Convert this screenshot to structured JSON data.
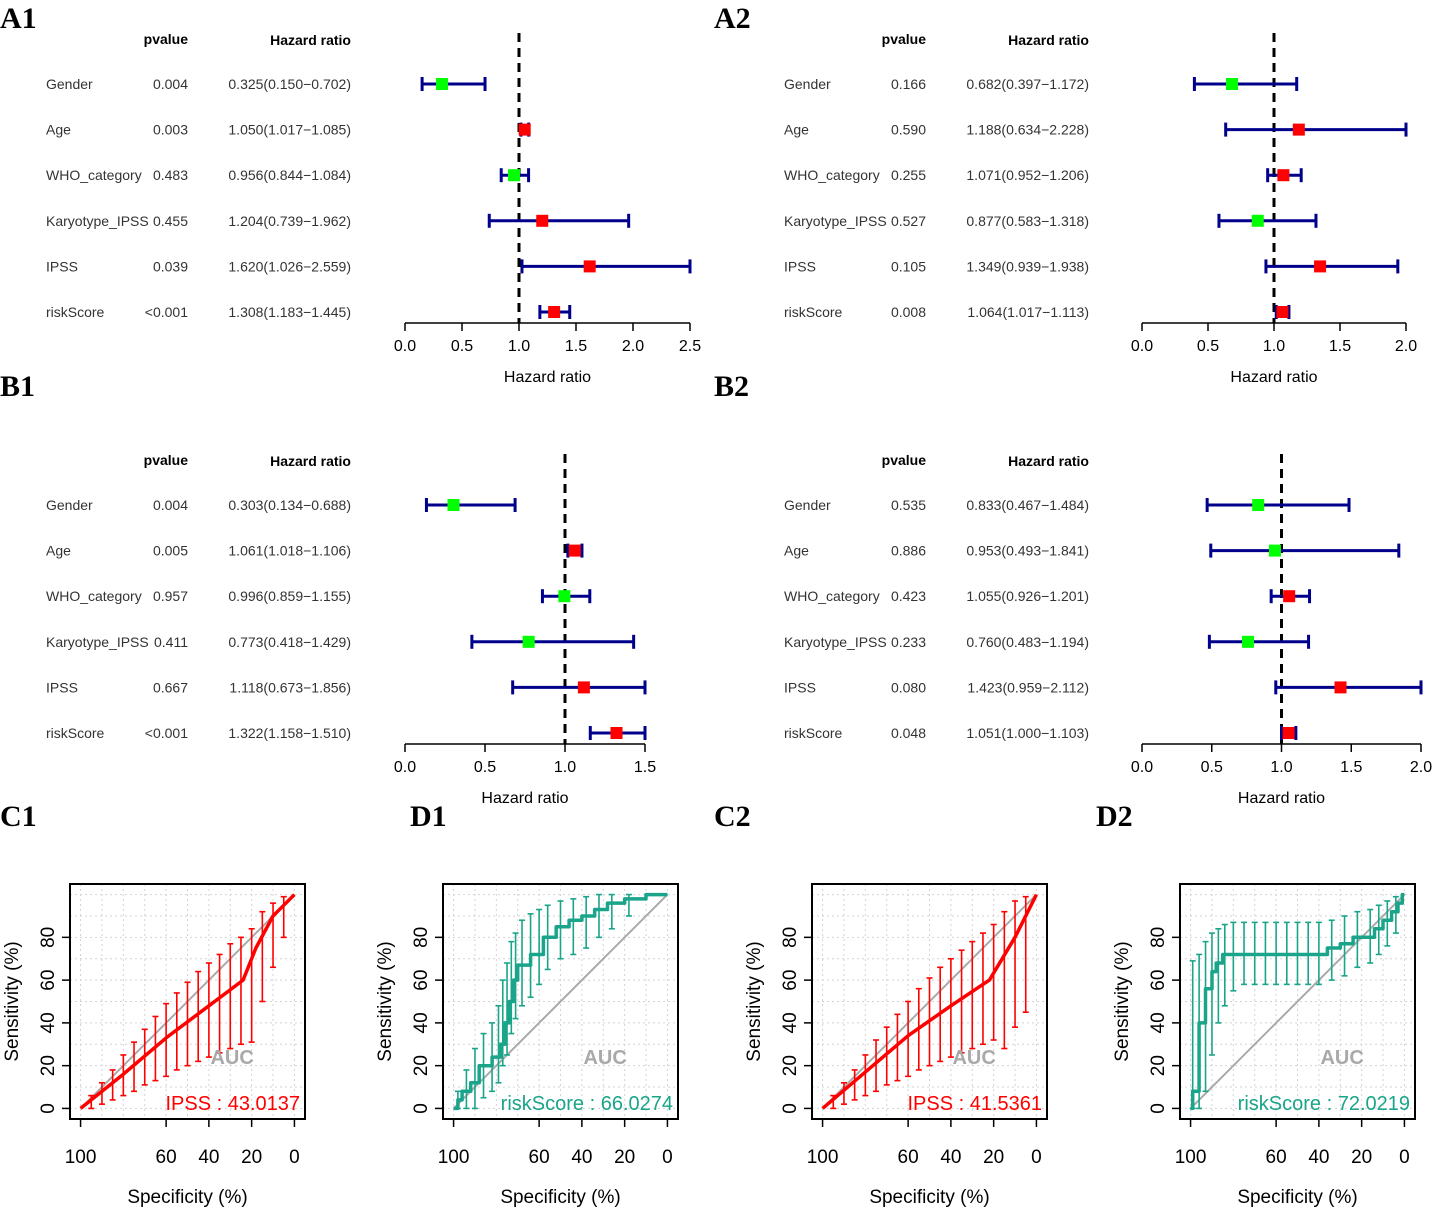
{
  "colors": {
    "ci_line": "#00008b",
    "protective": "#00ff00",
    "risk": "#ff0000",
    "ipss_roc": "#ff0000",
    "riskscore_roc": "#1aa58a",
    "diagonal": "#a9a9a9",
    "auc_title": "#a9a9a9"
  },
  "labels": {
    "pvalue_header": "pvalue",
    "hr_header": "Hazard ratio",
    "forest_xlabel": "Hazard ratio",
    "roc_xlabel": "Specificity (%)",
    "roc_ylabel": "Sensitivity (%)",
    "auc_title": "AUC"
  },
  "chart_data": [
    {
      "id": "A1",
      "panel_label": "A1",
      "type": "forest",
      "xlim": [
        0,
        2.5
      ],
      "xticks": [
        "0.0",
        "0.5",
        "1.0",
        "1.5",
        "2.0",
        "2.5"
      ],
      "ref": 1,
      "rows": [
        {
          "name": "Gender",
          "pvalue": "0.004",
          "hr_text": "0.325(0.150−0.702)",
          "hr": 0.325,
          "lo": 0.15,
          "hi": 0.702
        },
        {
          "name": "Age",
          "pvalue": "0.003",
          "hr_text": "1.050(1.017−1.085)",
          "hr": 1.05,
          "lo": 1.017,
          "hi": 1.085
        },
        {
          "name": "WHO_category",
          "pvalue": "0.483",
          "hr_text": "0.956(0.844−1.084)",
          "hr": 0.956,
          "lo": 0.844,
          "hi": 1.084
        },
        {
          "name": "Karyotype_IPSS",
          "pvalue": "0.455",
          "hr_text": "1.204(0.739−1.962)",
          "hr": 1.204,
          "lo": 0.739,
          "hi": 1.962
        },
        {
          "name": "IPSS",
          "pvalue": "0.039",
          "hr_text": "1.620(1.026−2.559)",
          "hr": 1.62,
          "lo": 1.026,
          "hi": 2.559
        },
        {
          "name": "riskScore",
          "pvalue": "<0.001",
          "hr_text": "1.308(1.183−1.445)",
          "hr": 1.308,
          "lo": 1.183,
          "hi": 1.445
        }
      ]
    },
    {
      "id": "A2",
      "panel_label": "A2",
      "type": "forest",
      "xlim": [
        0,
        2.0
      ],
      "xticks": [
        "0.0",
        "0.5",
        "1.0",
        "1.5",
        "2.0"
      ],
      "ref": 1,
      "rows": [
        {
          "name": "Gender",
          "pvalue": "0.166",
          "hr_text": "0.682(0.397−1.172)",
          "hr": 0.682,
          "lo": 0.397,
          "hi": 1.172
        },
        {
          "name": "Age",
          "pvalue": "0.590",
          "hr_text": "1.188(0.634−2.228)",
          "hr": 1.188,
          "lo": 0.634,
          "hi": 2.228
        },
        {
          "name": "WHO_category",
          "pvalue": "0.255",
          "hr_text": "1.071(0.952−1.206)",
          "hr": 1.071,
          "lo": 0.952,
          "hi": 1.206
        },
        {
          "name": "Karyotype_IPSS",
          "pvalue": "0.527",
          "hr_text": "0.877(0.583−1.318)",
          "hr": 0.877,
          "lo": 0.583,
          "hi": 1.318
        },
        {
          "name": "IPSS",
          "pvalue": "0.105",
          "hr_text": "1.349(0.939−1.938)",
          "hr": 1.349,
          "lo": 0.939,
          "hi": 1.938
        },
        {
          "name": "riskScore",
          "pvalue": "0.008",
          "hr_text": "1.064(1.017−1.113)",
          "hr": 1.064,
          "lo": 1.017,
          "hi": 1.113
        }
      ]
    },
    {
      "id": "B1",
      "panel_label": "B1",
      "type": "forest",
      "xlim": [
        0,
        1.5
      ],
      "xticks": [
        "0.0",
        "0.5",
        "1.0",
        "1.5"
      ],
      "ref": 1,
      "rows": [
        {
          "name": "Gender",
          "pvalue": "0.004",
          "hr_text": "0.303(0.134−0.688)",
          "hr": 0.303,
          "lo": 0.134,
          "hi": 0.688
        },
        {
          "name": "Age",
          "pvalue": "0.005",
          "hr_text": "1.061(1.018−1.106)",
          "hr": 1.061,
          "lo": 1.018,
          "hi": 1.106
        },
        {
          "name": "WHO_category",
          "pvalue": "0.957",
          "hr_text": "0.996(0.859−1.155)",
          "hr": 0.996,
          "lo": 0.859,
          "hi": 1.155
        },
        {
          "name": "Karyotype_IPSS",
          "pvalue": "0.411",
          "hr_text": "0.773(0.418−1.429)",
          "hr": 0.773,
          "lo": 0.418,
          "hi": 1.429
        },
        {
          "name": "IPSS",
          "pvalue": "0.667",
          "hr_text": "1.118(0.673−1.856)",
          "hr": 1.118,
          "lo": 0.673,
          "hi": 1.856
        },
        {
          "name": "riskScore",
          "pvalue": "<0.001",
          "hr_text": "1.322(1.158−1.510)",
          "hr": 1.322,
          "lo": 1.158,
          "hi": 1.51
        }
      ]
    },
    {
      "id": "B2",
      "panel_label": "B2",
      "type": "forest",
      "xlim": [
        0,
        2.0
      ],
      "xticks": [
        "0.0",
        "0.5",
        "1.0",
        "1.5",
        "2.0"
      ],
      "ref": 1,
      "rows": [
        {
          "name": "Gender",
          "pvalue": "0.535",
          "hr_text": "0.833(0.467−1.484)",
          "hr": 0.833,
          "lo": 0.467,
          "hi": 1.484
        },
        {
          "name": "Age",
          "pvalue": "0.886",
          "hr_text": "0.953(0.493−1.841)",
          "hr": 0.953,
          "lo": 0.493,
          "hi": 1.841
        },
        {
          "name": "WHO_category",
          "pvalue": "0.423",
          "hr_text": "1.055(0.926−1.201)",
          "hr": 1.055,
          "lo": 0.926,
          "hi": 1.201
        },
        {
          "name": "Karyotype_IPSS",
          "pvalue": "0.233",
          "hr_text": "0.760(0.483−1.194)",
          "hr": 0.76,
          "lo": 0.483,
          "hi": 1.194
        },
        {
          "name": "IPSS",
          "pvalue": "0.080",
          "hr_text": "1.423(0.959−2.112)",
          "hr": 1.423,
          "lo": 0.959,
          "hi": 2.112
        },
        {
          "name": "riskScore",
          "pvalue": "0.048",
          "hr_text": "1.051(1.000−1.103)",
          "hr": 1.051,
          "lo": 1.0,
          "hi": 1.103
        }
      ]
    },
    {
      "id": "C1",
      "panel_label": "C1",
      "type": "line",
      "subtype": "roc",
      "series_name": "IPSS",
      "auc_text": "IPSS : 43.0137",
      "auc": 43.0137,
      "color": "#ff0000",
      "step": false,
      "xlabel": "Specificity (%)",
      "ylabel": "Sensitivity (%)",
      "xticks": [
        100,
        60,
        40,
        20,
        0
      ],
      "yticks": [
        0,
        20,
        40,
        60,
        80
      ],
      "curve": [
        [
          100,
          0
        ],
        [
          80,
          16
        ],
        [
          60,
          33
        ],
        [
          40,
          48
        ],
        [
          24,
          60
        ],
        [
          18,
          75
        ],
        [
          10,
          90
        ],
        [
          5,
          95
        ],
        [
          0,
          100
        ]
      ],
      "ci": [
        {
          "spec": 95,
          "lo": 0,
          "hi": 6
        },
        {
          "spec": 90,
          "lo": 2,
          "hi": 12
        },
        {
          "spec": 85,
          "lo": 4,
          "hi": 18
        },
        {
          "spec": 80,
          "lo": 6,
          "hi": 25
        },
        {
          "spec": 75,
          "lo": 8,
          "hi": 31
        },
        {
          "spec": 70,
          "lo": 11,
          "hi": 37
        },
        {
          "spec": 65,
          "lo": 13,
          "hi": 43
        },
        {
          "spec": 60,
          "lo": 15,
          "hi": 49
        },
        {
          "spec": 55,
          "lo": 18,
          "hi": 54
        },
        {
          "spec": 50,
          "lo": 20,
          "hi": 59
        },
        {
          "spec": 45,
          "lo": 22,
          "hi": 64
        },
        {
          "spec": 40,
          "lo": 24,
          "hi": 68
        },
        {
          "spec": 35,
          "lo": 26,
          "hi": 72
        },
        {
          "spec": 30,
          "lo": 28,
          "hi": 77
        },
        {
          "spec": 25,
          "lo": 30,
          "hi": 80
        },
        {
          "spec": 20,
          "lo": 31,
          "hi": 84
        },
        {
          "spec": 15,
          "lo": 50,
          "hi": 92
        },
        {
          "spec": 10,
          "lo": 66,
          "hi": 96
        },
        {
          "spec": 5,
          "lo": 80,
          "hi": 99
        }
      ]
    },
    {
      "id": "D1",
      "panel_label": "D1",
      "type": "line",
      "subtype": "roc",
      "series_name": "riskScore",
      "auc_text": "riskScore : 66.0274",
      "auc": 66.0274,
      "color": "#1aa58a",
      "step": true,
      "xlabel": "Specificity (%)",
      "ylabel": "Sensitivity (%)",
      "xticks": [
        100,
        60,
        40,
        20,
        0
      ],
      "yticks": [
        0,
        20,
        40,
        60,
        80
      ],
      "curve": [
        [
          100,
          0
        ],
        [
          98,
          0
        ],
        [
          98,
          4
        ],
        [
          96,
          4
        ],
        [
          96,
          8
        ],
        [
          92,
          8
        ],
        [
          92,
          12
        ],
        [
          88,
          12
        ],
        [
          88,
          20
        ],
        [
          82,
          20
        ],
        [
          82,
          24
        ],
        [
          78,
          24
        ],
        [
          78,
          30
        ],
        [
          76,
          30
        ],
        [
          76,
          40
        ],
        [
          74,
          40
        ],
        [
          74,
          50
        ],
        [
          72,
          50
        ],
        [
          72,
          60
        ],
        [
          70,
          60
        ],
        [
          70,
          67
        ],
        [
          64,
          67
        ],
        [
          64,
          72
        ],
        [
          58,
          72
        ],
        [
          58,
          80
        ],
        [
          52,
          80
        ],
        [
          52,
          85
        ],
        [
          46,
          85
        ],
        [
          46,
          88
        ],
        [
          40,
          88
        ],
        [
          40,
          90
        ],
        [
          34,
          90
        ],
        [
          34,
          93
        ],
        [
          28,
          93
        ],
        [
          28,
          96
        ],
        [
          20,
          96
        ],
        [
          20,
          98
        ],
        [
          10,
          98
        ],
        [
          10,
          100
        ],
        [
          0,
          100
        ]
      ],
      "ci": [
        {
          "spec": 98,
          "lo": 0,
          "hi": 8
        },
        {
          "spec": 94,
          "lo": 0,
          "hi": 18
        },
        {
          "spec": 90,
          "lo": 0,
          "hi": 28
        },
        {
          "spec": 86,
          "lo": 5,
          "hi": 35
        },
        {
          "spec": 82,
          "lo": 8,
          "hi": 40
        },
        {
          "spec": 79,
          "lo": 12,
          "hi": 48
        },
        {
          "spec": 77,
          "lo": 20,
          "hi": 60
        },
        {
          "spec": 75,
          "lo": 25,
          "hi": 68
        },
        {
          "spec": 73,
          "lo": 35,
          "hi": 78
        },
        {
          "spec": 71,
          "lo": 42,
          "hi": 82
        },
        {
          "spec": 68,
          "lo": 48,
          "hi": 88
        },
        {
          "spec": 64,
          "lo": 52,
          "hi": 91
        },
        {
          "spec": 60,
          "lo": 58,
          "hi": 93
        },
        {
          "spec": 56,
          "lo": 65,
          "hi": 95
        },
        {
          "spec": 50,
          "lo": 70,
          "hi": 97
        },
        {
          "spec": 44,
          "lo": 72,
          "hi": 98
        },
        {
          "spec": 38,
          "lo": 75,
          "hi": 99
        },
        {
          "spec": 32,
          "lo": 80,
          "hi": 100
        },
        {
          "spec": 26,
          "lo": 84,
          "hi": 100
        },
        {
          "spec": 18,
          "lo": 90,
          "hi": 100
        }
      ]
    },
    {
      "id": "C2",
      "panel_label": "C2",
      "type": "line",
      "subtype": "roc",
      "series_name": "IPSS",
      "auc_text": "IPSS : 41.5361",
      "auc": 41.5361,
      "color": "#ff0000",
      "step": false,
      "xlabel": "Specificity (%)",
      "ylabel": "Sensitivity (%)",
      "xticks": [
        100,
        60,
        40,
        20,
        0
      ],
      "yticks": [
        0,
        20,
        40,
        60,
        80
      ],
      "curve": [
        [
          100,
          0
        ],
        [
          80,
          17
        ],
        [
          60,
          34
        ],
        [
          40,
          48
        ],
        [
          22,
          60
        ],
        [
          10,
          80
        ],
        [
          0,
          100
        ]
      ],
      "ci": [
        {
          "spec": 95,
          "lo": 0,
          "hi": 6
        },
        {
          "spec": 90,
          "lo": 2,
          "hi": 12
        },
        {
          "spec": 85,
          "lo": 4,
          "hi": 18
        },
        {
          "spec": 80,
          "lo": 6,
          "hi": 25
        },
        {
          "spec": 75,
          "lo": 8,
          "hi": 32
        },
        {
          "spec": 70,
          "lo": 11,
          "hi": 38
        },
        {
          "spec": 65,
          "lo": 13,
          "hi": 44
        },
        {
          "spec": 60,
          "lo": 15,
          "hi": 50
        },
        {
          "spec": 55,
          "lo": 18,
          "hi": 56
        },
        {
          "spec": 50,
          "lo": 20,
          "hi": 61
        },
        {
          "spec": 45,
          "lo": 22,
          "hi": 66
        },
        {
          "spec": 40,
          "lo": 24,
          "hi": 70
        },
        {
          "spec": 35,
          "lo": 26,
          "hi": 74
        },
        {
          "spec": 30,
          "lo": 28,
          "hi": 78
        },
        {
          "spec": 25,
          "lo": 30,
          "hi": 82
        },
        {
          "spec": 20,
          "lo": 32,
          "hi": 86
        },
        {
          "spec": 15,
          "lo": 28,
          "hi": 92
        },
        {
          "spec": 10,
          "lo": 38,
          "hi": 97
        },
        {
          "spec": 5,
          "lo": 45,
          "hi": 99
        }
      ]
    },
    {
      "id": "D2",
      "panel_label": "D2",
      "type": "line",
      "subtype": "roc",
      "series_name": "riskScore",
      "auc_text": "riskScore : 72.0219",
      "auc": 72.0219,
      "color": "#1aa58a",
      "step": true,
      "xlabel": "Specificity (%)",
      "ylabel": "Sensitivity (%)",
      "xticks": [
        100,
        60,
        40,
        20,
        0
      ],
      "yticks": [
        0,
        20,
        40,
        60,
        80
      ],
      "curve": [
        [
          100,
          0
        ],
        [
          99,
          0
        ],
        [
          99,
          8
        ],
        [
          96,
          8
        ],
        [
          96,
          40
        ],
        [
          93,
          40
        ],
        [
          93,
          56
        ],
        [
          90,
          56
        ],
        [
          90,
          64
        ],
        [
          88,
          64
        ],
        [
          88,
          68
        ],
        [
          85,
          68
        ],
        [
          85,
          72
        ],
        [
          36,
          72
        ],
        [
          36,
          75
        ],
        [
          30,
          75
        ],
        [
          30,
          77
        ],
        [
          24,
          77
        ],
        [
          24,
          80
        ],
        [
          14,
          80
        ],
        [
          14,
          84
        ],
        [
          10,
          84
        ],
        [
          10,
          88
        ],
        [
          6,
          88
        ],
        [
          6,
          92
        ],
        [
          3,
          92
        ],
        [
          3,
          96
        ],
        [
          1,
          96
        ],
        [
          1,
          100
        ],
        [
          0,
          100
        ]
      ],
      "ci": [
        {
          "spec": 99,
          "lo": 0,
          "hi": 69
        },
        {
          "spec": 96,
          "lo": 0,
          "hi": 72
        },
        {
          "spec": 93,
          "lo": 8,
          "hi": 78
        },
        {
          "spec": 90,
          "lo": 25,
          "hi": 82
        },
        {
          "spec": 87,
          "lo": 40,
          "hi": 84
        },
        {
          "spec": 84,
          "lo": 48,
          "hi": 86
        },
        {
          "spec": 80,
          "lo": 55,
          "hi": 87
        },
        {
          "spec": 75,
          "lo": 58,
          "hi": 87
        },
        {
          "spec": 70,
          "lo": 58,
          "hi": 87
        },
        {
          "spec": 65,
          "lo": 58,
          "hi": 87
        },
        {
          "spec": 60,
          "lo": 58,
          "hi": 87
        },
        {
          "spec": 55,
          "lo": 58,
          "hi": 87
        },
        {
          "spec": 50,
          "lo": 58,
          "hi": 87
        },
        {
          "spec": 45,
          "lo": 58,
          "hi": 87
        },
        {
          "spec": 40,
          "lo": 58,
          "hi": 87
        },
        {
          "spec": 34,
          "lo": 60,
          "hi": 88
        },
        {
          "spec": 28,
          "lo": 62,
          "hi": 90
        },
        {
          "spec": 22,
          "lo": 66,
          "hi": 92
        },
        {
          "spec": 16,
          "lo": 68,
          "hi": 93
        },
        {
          "spec": 12,
          "lo": 72,
          "hi": 95
        },
        {
          "spec": 8,
          "lo": 76,
          "hi": 97
        },
        {
          "spec": 4,
          "lo": 82,
          "hi": 99
        }
      ]
    }
  ]
}
